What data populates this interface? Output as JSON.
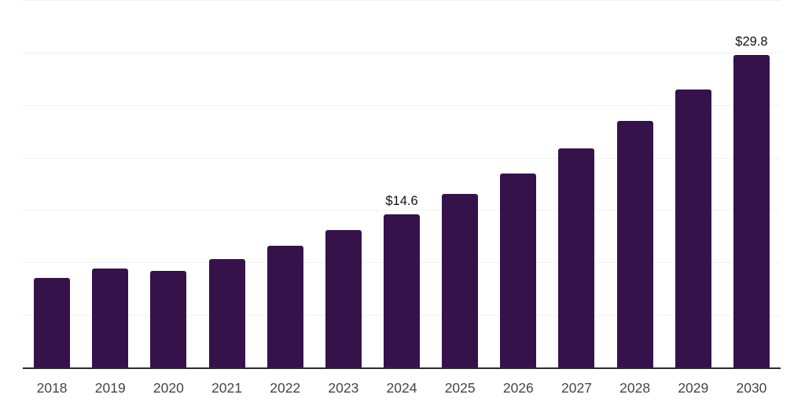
{
  "chart_data": {
    "type": "bar",
    "title": "",
    "xlabel": "",
    "ylabel": "",
    "categories": [
      "2018",
      "2019",
      "2020",
      "2021",
      "2022",
      "2023",
      "2024",
      "2025",
      "2026",
      "2027",
      "2028",
      "2029",
      "2030"
    ],
    "values": [
      8.5,
      9.4,
      9.2,
      10.3,
      11.6,
      13.1,
      14.6,
      16.5,
      18.5,
      20.9,
      23.5,
      26.5,
      29.8
    ],
    "bar_labels": {
      "2024": "$14.6",
      "2030": "$29.8"
    },
    "ylim": [
      0,
      35
    ],
    "ytick_step": 5,
    "y_tick_labels_visible": false,
    "grid": true,
    "legend": false,
    "colors": {
      "bar_color": "#36124b",
      "grid_color": "#f0f0f0",
      "axis_color": "#2b2b2b",
      "data_label_color": "#141414",
      "tick_label_color": "#454545",
      "background": "#ffffff"
    }
  }
}
